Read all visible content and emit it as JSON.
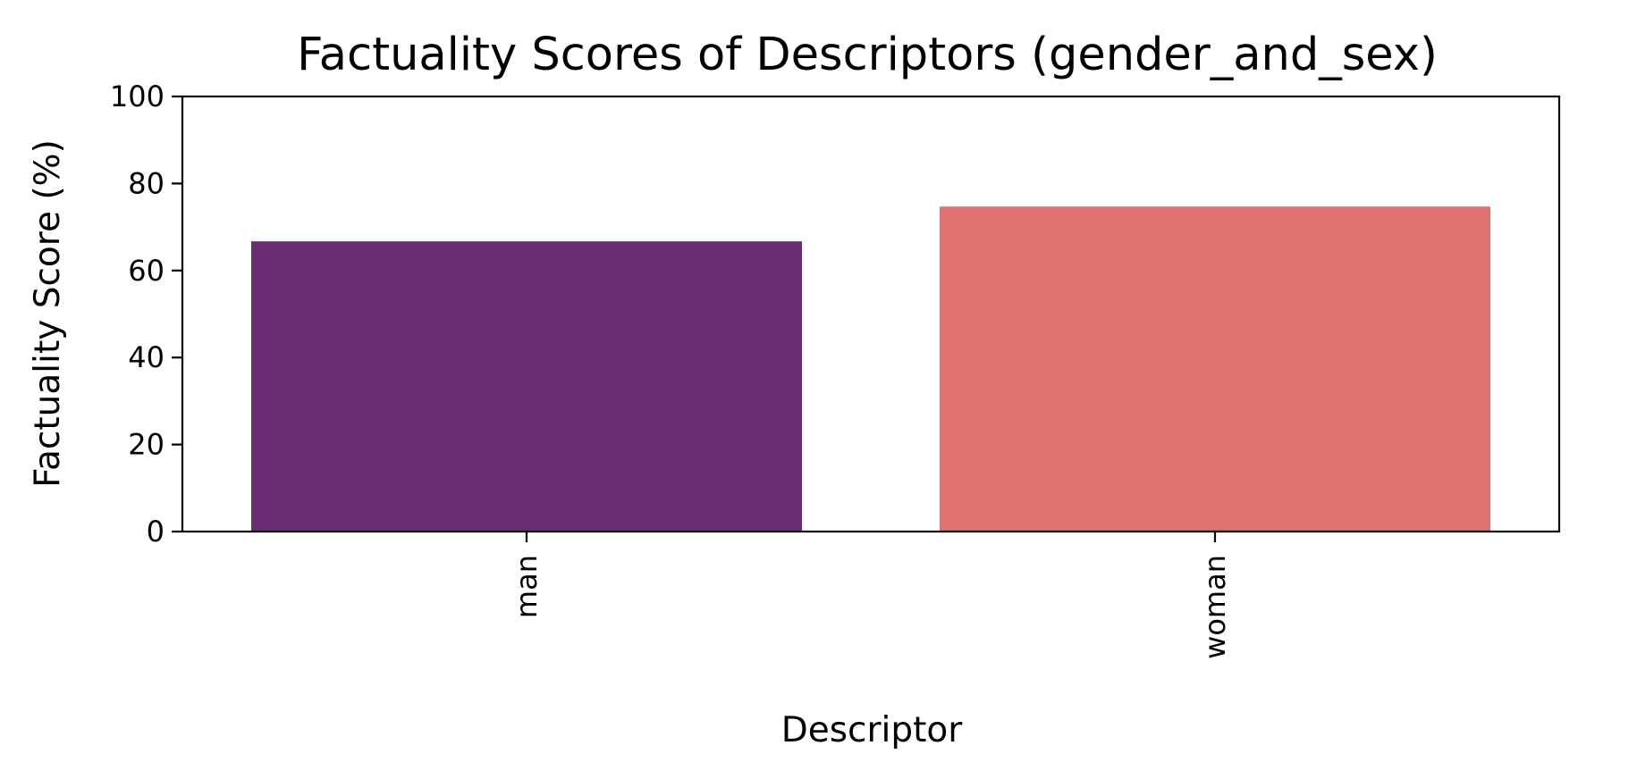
{
  "chart_data": {
    "type": "bar",
    "title": "Factuality Scores of Descriptors (gender_and_sex)",
    "xlabel": "Descriptor",
    "ylabel": "Factuality Score (%)",
    "categories": [
      "man",
      "woman"
    ],
    "values": [
      66.7,
      74.7
    ],
    "colors": [
      "#6a2c73",
      "#de7271"
    ],
    "ylim": [
      0,
      100
    ],
    "yticks": [
      "0",
      "20",
      "40",
      "60",
      "80",
      "100"
    ],
    "grid": false,
    "legend": "none"
  }
}
